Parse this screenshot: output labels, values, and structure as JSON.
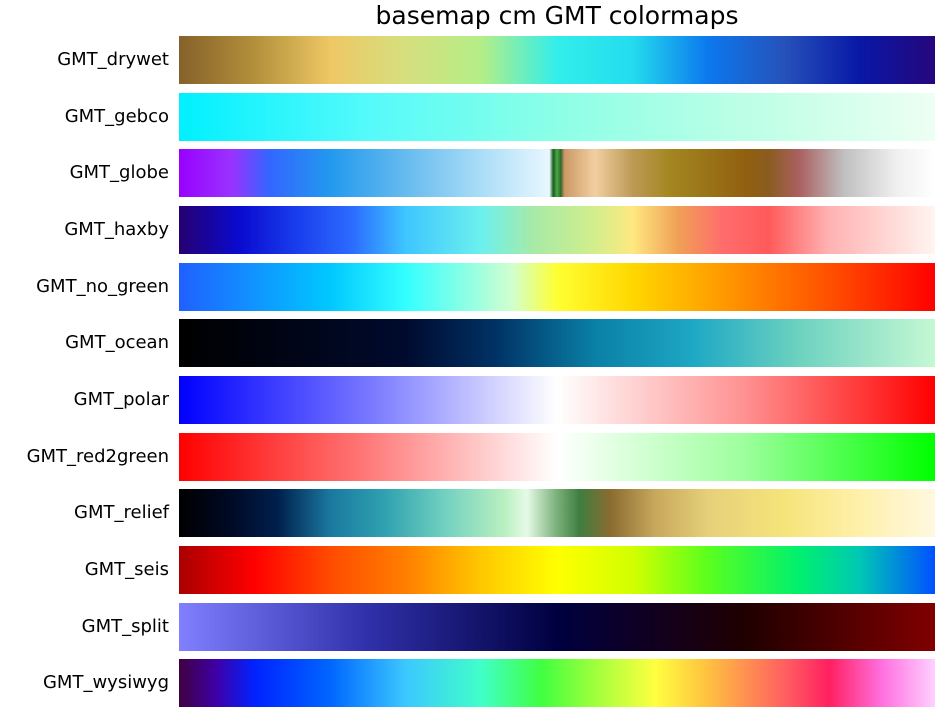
{
  "chart_data": {
    "type": "colormap-strips",
    "title": "basemap cm GMT colormaps",
    "colormaps": [
      {
        "name": "GMT_drywet",
        "stops": [
          [
            0,
            "#86612a"
          ],
          [
            0.1,
            "#b2903b"
          ],
          [
            0.2,
            "#eec764"
          ],
          [
            0.3,
            "#d6df7e"
          ],
          [
            0.4,
            "#b4ee87"
          ],
          [
            0.5,
            "#32eeeb"
          ],
          [
            0.6,
            "#24dcee"
          ],
          [
            0.7,
            "#0c78ee"
          ],
          [
            0.8,
            "#2652ba"
          ],
          [
            0.9,
            "#0818a6"
          ],
          [
            1,
            "#26067c"
          ]
        ]
      },
      {
        "name": "GMT_gebco",
        "stops": [
          [
            0,
            "#00f0ff"
          ],
          [
            0.25,
            "#55fafa"
          ],
          [
            0.5,
            "#8cffe6"
          ],
          [
            0.75,
            "#bcffe6"
          ],
          [
            1,
            "#edfff3"
          ]
        ]
      },
      {
        "name": "GMT_globe",
        "stops": [
          [
            0,
            "#9900ff"
          ],
          [
            0.07,
            "#9933ff"
          ],
          [
            0.12,
            "#3366ff"
          ],
          [
            0.2,
            "#2299ee"
          ],
          [
            0.3,
            "#66bbee"
          ],
          [
            0.4,
            "#aaddf7"
          ],
          [
            0.49,
            "#e8f7ff"
          ],
          [
            0.495,
            "#1a5c1a"
          ],
          [
            0.5,
            "#44aa44"
          ],
          [
            0.505,
            "#33662b"
          ],
          [
            0.51,
            "#cc9966"
          ],
          [
            0.55,
            "#f2cfa0"
          ],
          [
            0.6,
            "#bc9a55"
          ],
          [
            0.65,
            "#a38620"
          ],
          [
            0.75,
            "#906010"
          ],
          [
            0.78,
            "#8a5c20"
          ],
          [
            0.82,
            "#aa6060"
          ],
          [
            0.88,
            "#c0c0c0"
          ],
          [
            0.95,
            "#f0f0f0"
          ],
          [
            1,
            "#ffffff"
          ]
        ]
      },
      {
        "name": "GMT_haxby",
        "stops": [
          [
            0,
            "#250070"
          ],
          [
            0.08,
            "#0a0ad0"
          ],
          [
            0.16,
            "#1a40ee"
          ],
          [
            0.23,
            "#2c6cff"
          ],
          [
            0.3,
            "#3ec6ff"
          ],
          [
            0.4,
            "#6cf0ee"
          ],
          [
            0.47,
            "#a8eaa6"
          ],
          [
            0.55,
            "#d2ee8c"
          ],
          [
            0.6,
            "#ffe880"
          ],
          [
            0.66,
            "#f0a055"
          ],
          [
            0.72,
            "#ff6c6c"
          ],
          [
            0.78,
            "#ff5a5a"
          ],
          [
            0.86,
            "#ffb2b2"
          ],
          [
            1,
            "#fff5f0"
          ]
        ]
      },
      {
        "name": "GMT_no_green",
        "stops": [
          [
            0,
            "#2060ff"
          ],
          [
            0.2,
            "#00c8ff"
          ],
          [
            0.3,
            "#33ffff"
          ],
          [
            0.44,
            "#d0ffd0"
          ],
          [
            0.5,
            "#ffff33"
          ],
          [
            0.6,
            "#ffd700"
          ],
          [
            0.72,
            "#ff9900"
          ],
          [
            0.86,
            "#ff5000"
          ],
          [
            1,
            "#ff0000"
          ]
        ]
      },
      {
        "name": "GMT_ocean",
        "stops": [
          [
            0,
            "#000000"
          ],
          [
            0.15,
            "#000516"
          ],
          [
            0.3,
            "#000a2e"
          ],
          [
            0.42,
            "#003366"
          ],
          [
            0.55,
            "#0a80a6"
          ],
          [
            0.68,
            "#1ea8c4"
          ],
          [
            0.82,
            "#6dd2c0"
          ],
          [
            1,
            "#c5f8d3"
          ]
        ]
      },
      {
        "name": "GMT_polar",
        "stops": [
          [
            0,
            "#0000ff"
          ],
          [
            0.25,
            "#7777ff"
          ],
          [
            0.5,
            "#ffffff"
          ],
          [
            0.75,
            "#ff9090"
          ],
          [
            1,
            "#ff0000"
          ]
        ]
      },
      {
        "name": "GMT_red2green",
        "stops": [
          [
            0,
            "#ff0000"
          ],
          [
            0.25,
            "#ff7a7a"
          ],
          [
            0.5,
            "#ffffff"
          ],
          [
            0.75,
            "#9cff9c"
          ],
          [
            1,
            "#00ff00"
          ]
        ]
      },
      {
        "name": "GMT_relief",
        "stops": [
          [
            0,
            "#000000"
          ],
          [
            0.07,
            "#000a26"
          ],
          [
            0.13,
            "#001f4c"
          ],
          [
            0.2,
            "#1a78a0"
          ],
          [
            0.27,
            "#2ea0b0"
          ],
          [
            0.35,
            "#70d0c0"
          ],
          [
            0.43,
            "#b8f0c0"
          ],
          [
            0.46,
            "#e6fae6"
          ],
          [
            0.5,
            "#7ab07a"
          ],
          [
            0.53,
            "#3e7e40"
          ],
          [
            0.57,
            "#8a6b30"
          ],
          [
            0.63,
            "#c8a85c"
          ],
          [
            0.7,
            "#e6d07a"
          ],
          [
            0.8,
            "#f5e47a"
          ],
          [
            0.9,
            "#fff0aa"
          ],
          [
            1,
            "#fff8e0"
          ]
        ]
      },
      {
        "name": "GMT_seis",
        "stops": [
          [
            0,
            "#aa0000"
          ],
          [
            0.1,
            "#ff0000"
          ],
          [
            0.2,
            "#ff4b00"
          ],
          [
            0.3,
            "#ff7f00"
          ],
          [
            0.4,
            "#ffc800"
          ],
          [
            0.5,
            "#ffff00"
          ],
          [
            0.6,
            "#d2ff00"
          ],
          [
            0.7,
            "#5aff1e"
          ],
          [
            0.82,
            "#00f06e"
          ],
          [
            0.9,
            "#00c8b4"
          ],
          [
            1,
            "#0050ff"
          ]
        ]
      },
      {
        "name": "GMT_split",
        "stops": [
          [
            0,
            "#8080ff"
          ],
          [
            0.25,
            "#3030aa"
          ],
          [
            0.5,
            "#000040"
          ],
          [
            0.75,
            "#200000"
          ],
          [
            1,
            "#800000"
          ]
        ]
      },
      {
        "name": "GMT_wysiwyg",
        "stops": [
          [
            0,
            "#400040"
          ],
          [
            0.05,
            "#3e00a8"
          ],
          [
            0.1,
            "#0022ff"
          ],
          [
            0.2,
            "#0066ff"
          ],
          [
            0.3,
            "#3cc8ff"
          ],
          [
            0.4,
            "#40ffc8"
          ],
          [
            0.48,
            "#40ff40"
          ],
          [
            0.55,
            "#a0ff3c"
          ],
          [
            0.63,
            "#ffff40"
          ],
          [
            0.7,
            "#ffc040"
          ],
          [
            0.8,
            "#ff6060"
          ],
          [
            0.86,
            "#ff2060"
          ],
          [
            0.93,
            "#ff70e0"
          ],
          [
            1,
            "#ffd0ff"
          ]
        ]
      }
    ]
  }
}
